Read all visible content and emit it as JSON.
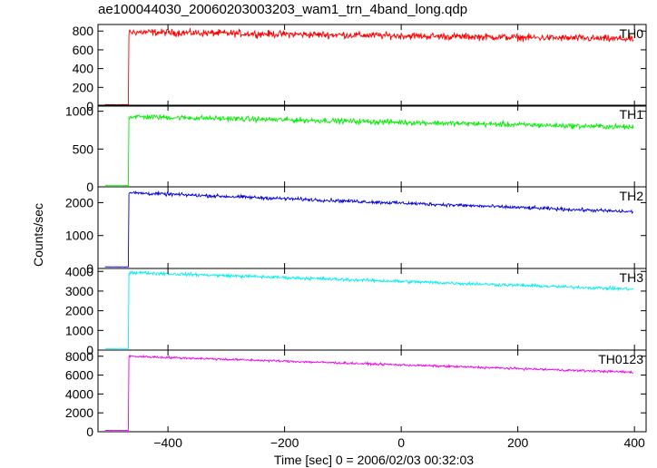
{
  "title": "ae100044030_20060203003203_wam1_trn_4band_long.qdp",
  "chart_data": {
    "type": "line",
    "xlabel": "Time [sec] 0 = 2006/02/03 00:32:03",
    "ylabel": "Counts/sec",
    "xlim": [
      -520,
      420
    ],
    "xticks": [
      -400,
      -200,
      0,
      200,
      400
    ],
    "onset_time": -467,
    "panels": [
      {
        "name": "TH0",
        "color": "#ff0000",
        "ylim": [
          0,
          870
        ],
        "yticks": [
          0,
          200,
          400,
          600,
          800
        ],
        "pre_level": 15,
        "start_level": 790,
        "end_level": 715,
        "noise": 32
      },
      {
        "name": "TH1",
        "color": "#00ee00",
        "ylim": [
          0,
          1080
        ],
        "yticks": [
          0,
          500,
          1000
        ],
        "pre_level": 20,
        "start_level": 930,
        "end_level": 790,
        "noise": 30
      },
      {
        "name": "TH2",
        "color": "#0000dd",
        "ylim": [
          0,
          2480
        ],
        "yticks": [
          0,
          1000,
          2000
        ],
        "pre_level": 50,
        "start_level": 2300,
        "end_level": 1720,
        "noise": 45
      },
      {
        "name": "TH3",
        "color": "#00eeee",
        "ylim": [
          0,
          4150
        ],
        "yticks": [
          0,
          1000,
          2000,
          3000,
          4000
        ],
        "pre_level": 80,
        "start_level": 3950,
        "end_level": 3100,
        "noise": 70
      },
      {
        "name": "TH0123",
        "color": "#ee00ee",
        "ylim": [
          0,
          8650
        ],
        "yticks": [
          0,
          2000,
          4000,
          6000,
          8000
        ],
        "pre_level": 150,
        "start_level": 8000,
        "end_level": 6300,
        "noise": 100
      }
    ]
  }
}
